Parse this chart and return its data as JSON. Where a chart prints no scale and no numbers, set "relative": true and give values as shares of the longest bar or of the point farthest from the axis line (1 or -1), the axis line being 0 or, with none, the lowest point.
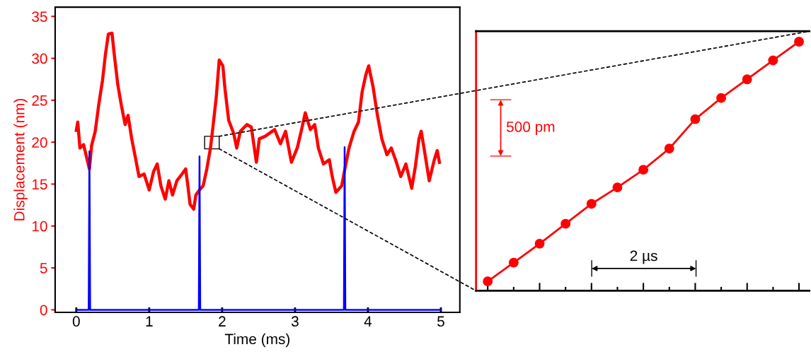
{
  "chart_data": [
    {
      "type": "line",
      "xlabel": "Time (ms)",
      "ylabel": "Displacement (nm)",
      "xlim": [
        -0.29,
        5.26
      ],
      "xticks": [
        0,
        1,
        2,
        3,
        4,
        5
      ],
      "ylim": [
        -0.3,
        36.1
      ],
      "yticks": [
        0,
        5,
        10,
        15,
        20,
        25,
        30,
        35
      ],
      "line_style": "solid",
      "series": [
        {
          "color": "#ff0000",
          "x": [
            0.0,
            0.02,
            0.05,
            0.1,
            0.18,
            0.21,
            0.26,
            0.31,
            0.36,
            0.4,
            0.44,
            0.49,
            0.52,
            0.57,
            0.62,
            0.67,
            0.71,
            0.76,
            0.81,
            0.86,
            0.93,
            1.0,
            1.06,
            1.11,
            1.16,
            1.22,
            1.27,
            1.32,
            1.38,
            1.45,
            1.5,
            1.53,
            1.56,
            1.61,
            1.64,
            1.69,
            1.74,
            1.79,
            1.84,
            1.87,
            1.92,
            1.96,
            2.01,
            2.04,
            2.09,
            2.16,
            2.2,
            2.25,
            2.34,
            2.4,
            2.47,
            2.51,
            2.59,
            2.72,
            2.8,
            2.87,
            2.95,
            3.03,
            3.09,
            3.14,
            3.21,
            3.27,
            3.32,
            3.39,
            3.47,
            3.51,
            3.56,
            3.64,
            3.69,
            3.74,
            3.81,
            3.87,
            3.92,
            3.97,
            4.01,
            4.07,
            4.13,
            4.19,
            4.26,
            4.32,
            4.39,
            4.45,
            4.52,
            4.6,
            4.65,
            4.7,
            4.73,
            4.78,
            4.84,
            4.91,
            4.95,
            4.98
          ],
          "values": [
            21.4,
            22.4,
            19.3,
            19.7,
            16.8,
            19.6,
            21.3,
            24.6,
            27.4,
            30.5,
            32.9,
            33.0,
            30.5,
            26.8,
            24.3,
            22.1,
            23.2,
            20.4,
            18.2,
            15.9,
            16.2,
            14.3,
            16.5,
            17.4,
            14.8,
            13.2,
            15.4,
            13.7,
            15.4,
            16.2,
            16.8,
            14.8,
            12.6,
            12.0,
            13.7,
            14.3,
            14.8,
            16.8,
            19.3,
            21.5,
            25.4,
            29.8,
            29.1,
            26.3,
            22.6,
            21.0,
            19.3,
            21.3,
            22.1,
            21.8,
            17.6,
            20.4,
            20.7,
            21.5,
            19.8,
            21.3,
            17.6,
            19.3,
            21.5,
            23.5,
            21.5,
            22.1,
            19.3,
            17.4,
            17.9,
            15.9,
            14.0,
            14.8,
            17.1,
            19.3,
            21.3,
            22.4,
            26.0,
            28.0,
            29.1,
            26.6,
            23.2,
            20.4,
            18.5,
            19.3,
            17.6,
            15.9,
            17.4,
            14.5,
            17.1,
            20.4,
            21.3,
            18.7,
            15.4,
            17.9,
            19.0,
            17.6
          ]
        },
        {
          "color": "#0000ff",
          "x": [
            0.0,
            0.17,
            0.18,
            0.19,
            1.68,
            1.69,
            1.7,
            3.67,
            3.68,
            3.69,
            5.0
          ],
          "values": [
            0,
            0,
            18.9,
            0,
            0,
            18.3,
            0,
            0,
            19.4,
            0,
            0
          ]
        }
      ]
    },
    {
      "type": "line",
      "relative": true,
      "categories": [
        null,
        null,
        null,
        null,
        null,
        null,
        null,
        null,
        null,
        null,
        null,
        null,
        null
      ],
      "marker": "circle",
      "line_style": "solid",
      "annotations": [
        "500 pm",
        "2 µs"
      ],
      "series": [
        {
          "color": "#ff0000",
          "values": [
            0.038,
            0.113,
            0.189,
            0.269,
            0.349,
            0.415,
            0.486,
            0.571,
            0.689,
            0.774,
            0.849,
            0.925,
            1.0
          ]
        }
      ]
    }
  ]
}
